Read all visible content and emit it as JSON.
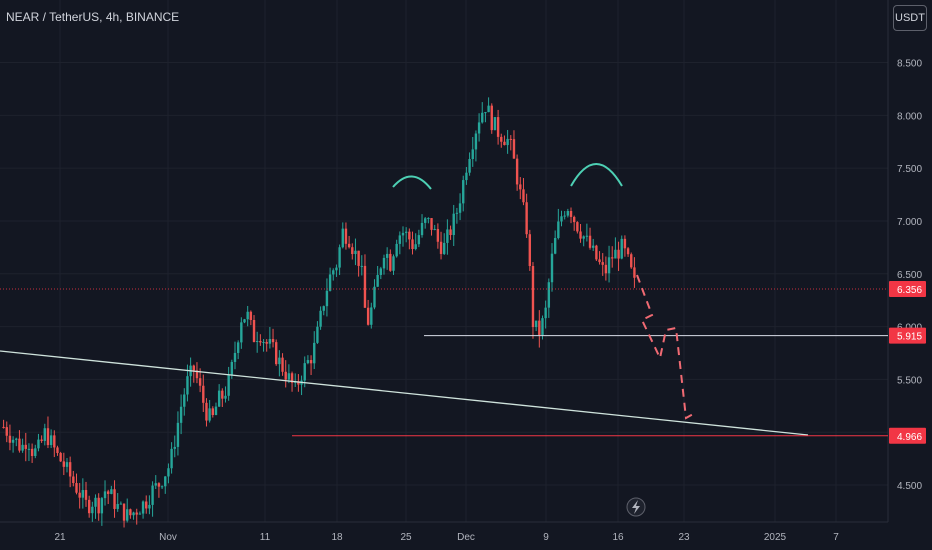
{
  "chart_data": {
    "type": "candlestick",
    "title": "NEAR / TetherUS, 4h, BINANCE",
    "currency_label": "USDT",
    "ylim": [
      4.15,
      8.95
    ],
    "y_ticks": [
      4.5,
      5.0,
      5.5,
      6.0,
      6.5,
      7.0,
      7.5,
      8.0,
      8.5
    ],
    "y_tick_labels": [
      "4.500",
      "5.000",
      "5.500",
      "6.000",
      "6.500",
      "7.000",
      "7.500",
      "8.000",
      "8.500"
    ],
    "x_ticks": [
      "21",
      "Nov",
      "11",
      "18",
      "25",
      "Dec",
      "9",
      "16",
      "23",
      "2025",
      "7"
    ],
    "price_levels": [
      {
        "value": 6.356,
        "label": "6.356"
      },
      {
        "value": 5.915,
        "label": "5.915"
      },
      {
        "value": 4.966,
        "label": "4.966"
      }
    ],
    "close_path": [
      5.05,
      4.98,
      4.92,
      4.85,
      4.95,
      4.8,
      4.85,
      5.0,
      4.9,
      4.78,
      4.7,
      4.6,
      4.5,
      4.4,
      4.3,
      4.35,
      4.32,
      4.45,
      4.4,
      4.3,
      4.25,
      4.2,
      4.25,
      4.3,
      4.35,
      4.45,
      4.5,
      4.6,
      4.7,
      5.0,
      5.3,
      5.5,
      5.6,
      5.4,
      5.2,
      5.1,
      5.3,
      5.35,
      5.5,
      5.8,
      6.1,
      6.1,
      5.9,
      5.95,
      5.85,
      5.8,
      5.7,
      5.6,
      5.5,
      5.4,
      5.55,
      5.65,
      5.75,
      6.0,
      6.3,
      6.5,
      6.6,
      6.9,
      6.85,
      6.7,
      6.6,
      6.0,
      6.2,
      6.5,
      6.75,
      6.6,
      6.85,
      6.9,
      6.85,
      6.75,
      6.9,
      7.0,
      6.95,
      6.8,
      6.75,
      6.9,
      7.05,
      7.3,
      7.6,
      7.8,
      8.0,
      8.1,
      7.95,
      7.85,
      7.8,
      7.75,
      7.5,
      7.2,
      6.9,
      6.0,
      5.95,
      6.1,
      6.6,
      6.9,
      7.1,
      7.15,
      7.0,
      6.9,
      6.8,
      6.7,
      6.6,
      6.5,
      6.65,
      6.7,
      6.75,
      6.6,
      6.4
    ],
    "necklines": [
      5.915,
      4.966
    ]
  }
}
